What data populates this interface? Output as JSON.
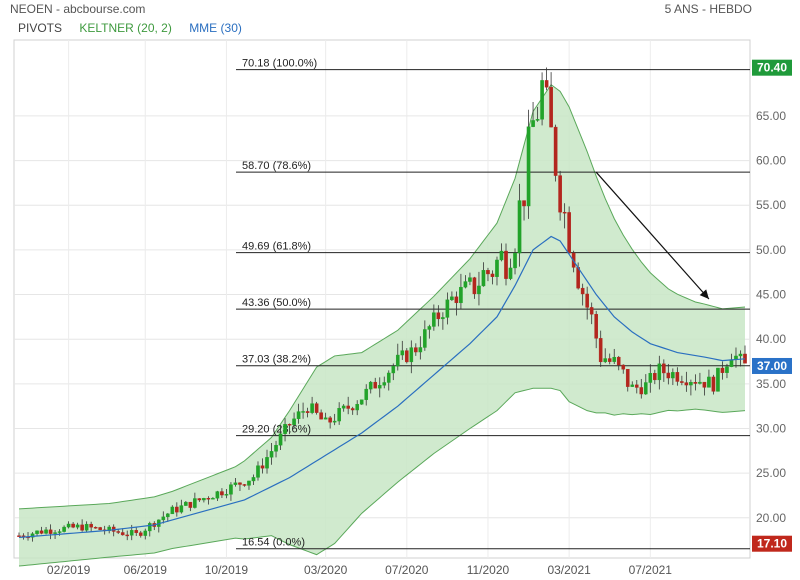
{
  "header": {
    "title": "NEOEN - abcbourse.com",
    "period": "5 ANS - HEBDO"
  },
  "legend": [
    {
      "label": "PIVOTS",
      "color": "#444444"
    },
    {
      "label": "KELTNER (20, 2)",
      "color": "#3f9a3f"
    },
    {
      "label": "MME (30)",
      "color": "#2a6fc0"
    }
  ],
  "colors": {
    "up": "#22a32a",
    "down": "#b3261e",
    "band": "#c8e6c6",
    "band_line": "#5aa85a",
    "ema": "#2a6fc0",
    "price_badge": "#2a72c8",
    "high_badge": "#1f9a3a",
    "low_badge": "#c0281c"
  },
  "chart_data": {
    "type": "candlestick",
    "ylim": [
      15.5,
      73.5
    ],
    "y_ticks": [
      20,
      25,
      30,
      35,
      40,
      45,
      50,
      55,
      60,
      65
    ],
    "y_tick_labels": [
      "20.00",
      "25.00",
      "30.00",
      "35.00",
      "40.00",
      "45.00",
      "50.00",
      "55.00",
      "60.00",
      "65.00"
    ],
    "x_tick_labels": [
      "02/2019",
      "06/2019",
      "10/2019",
      "03/2020",
      "07/2020",
      "11/2020",
      "03/2021",
      "07/2021"
    ],
    "x_tick_week": [
      11,
      28,
      46,
      68,
      86,
      104,
      122,
      140
    ],
    "weeks": 162,
    "fib_levels": [
      {
        "value": 70.18,
        "label": "70.18  (100.0%)"
      },
      {
        "value": 58.7,
        "label": "58.70  (78.6%)"
      },
      {
        "value": 49.69,
        "label": "49.69  (61.8%)"
      },
      {
        "value": 43.36,
        "label": "43.36  (50.0%)"
      },
      {
        "value": 37.03,
        "label": "37.03  (38.2%)"
      },
      {
        "value": 29.2,
        "label": "29.20  (23.6%)"
      },
      {
        "value": 16.54,
        "label": "16.54  (0.0%)"
      }
    ],
    "price_markers": [
      {
        "value": 70.4,
        "label": "70.40",
        "kind": "high"
      },
      {
        "value": 37.0,
        "label": "37.00",
        "kind": "price"
      },
      {
        "value": 17.1,
        "label": "17.10",
        "kind": "low"
      }
    ],
    "trend_arrow": {
      "from": {
        "week": 128,
        "value": 58.7
      },
      "to": {
        "week": 153,
        "value": 44.5
      }
    },
    "price_path": [
      [
        0,
        18.0
      ],
      [
        6,
        18.6
      ],
      [
        14,
        19.0
      ],
      [
        22,
        18.4
      ],
      [
        26,
        18.1
      ],
      [
        30,
        19.5
      ],
      [
        34,
        20.8
      ],
      [
        40,
        22.0
      ],
      [
        46,
        23.2
      ],
      [
        52,
        24.6
      ],
      [
        56,
        27.5
      ],
      [
        60,
        30.5
      ],
      [
        64,
        32.5
      ],
      [
        68,
        30.5
      ],
      [
        72,
        32.0
      ],
      [
        76,
        33.5
      ],
      [
        80,
        35.5
      ],
      [
        84,
        37.5
      ],
      [
        88,
        39.0
      ],
      [
        92,
        42.0
      ],
      [
        96,
        44.5
      ],
      [
        100,
        46.0
      ],
      [
        104,
        47.5
      ],
      [
        108,
        49.5
      ],
      [
        110,
        52.0
      ],
      [
        112,
        57.0
      ],
      [
        114,
        64.0
      ],
      [
        116,
        68.0
      ],
      [
        117,
        65.0
      ],
      [
        119,
        60.0
      ],
      [
        121,
        54.0
      ],
      [
        123,
        50.0
      ],
      [
        125,
        45.5
      ],
      [
        127,
        42.0
      ],
      [
        129,
        38.5
      ],
      [
        131,
        37.5
      ],
      [
        133,
        36.2
      ],
      [
        136,
        34.5
      ],
      [
        139,
        34.8
      ],
      [
        142,
        36.5
      ],
      [
        146,
        36.0
      ],
      [
        150,
        35.5
      ],
      [
        154,
        35.0
      ],
      [
        158,
        38.5
      ],
      [
        161,
        37.0
      ]
    ],
    "ema_path": [
      [
        0,
        17.8
      ],
      [
        10,
        18.2
      ],
      [
        20,
        18.6
      ],
      [
        30,
        19.2
      ],
      [
        40,
        20.6
      ],
      [
        50,
        22.0
      ],
      [
        60,
        24.5
      ],
      [
        68,
        27.0
      ],
      [
        76,
        29.5
      ],
      [
        84,
        32.5
      ],
      [
        92,
        36.0
      ],
      [
        100,
        39.5
      ],
      [
        106,
        42.5
      ],
      [
        110,
        46.0
      ],
      [
        114,
        50.0
      ],
      [
        118,
        51.5
      ],
      [
        120,
        51.0
      ],
      [
        124,
        48.0
      ],
      [
        128,
        45.0
      ],
      [
        132,
        42.5
      ],
      [
        136,
        40.8
      ],
      [
        140,
        39.5
      ],
      [
        146,
        38.5
      ],
      [
        152,
        38.0
      ],
      [
        156,
        37.6
      ],
      [
        161,
        37.8
      ]
    ],
    "band_width_path": [
      [
        0,
        3.2
      ],
      [
        20,
        3.0
      ],
      [
        34,
        3.2
      ],
      [
        48,
        4.0
      ],
      [
        56,
        5.5
      ],
      [
        62,
        8.5
      ],
      [
        66,
        10.5
      ],
      [
        70,
        10.5
      ],
      [
        76,
        9.0
      ],
      [
        84,
        8.5
      ],
      [
        92,
        8.8
      ],
      [
        100,
        9.5
      ],
      [
        106,
        10.5
      ],
      [
        110,
        12.0
      ],
      [
        114,
        15.5
      ],
      [
        118,
        17.0
      ],
      [
        122,
        16.5
      ],
      [
        126,
        14.5
      ],
      [
        130,
        12.0
      ],
      [
        134,
        10.0
      ],
      [
        138,
        8.5
      ],
      [
        144,
        6.8
      ],
      [
        150,
        6.0
      ],
      [
        156,
        5.8
      ],
      [
        161,
        5.8
      ]
    ]
  }
}
